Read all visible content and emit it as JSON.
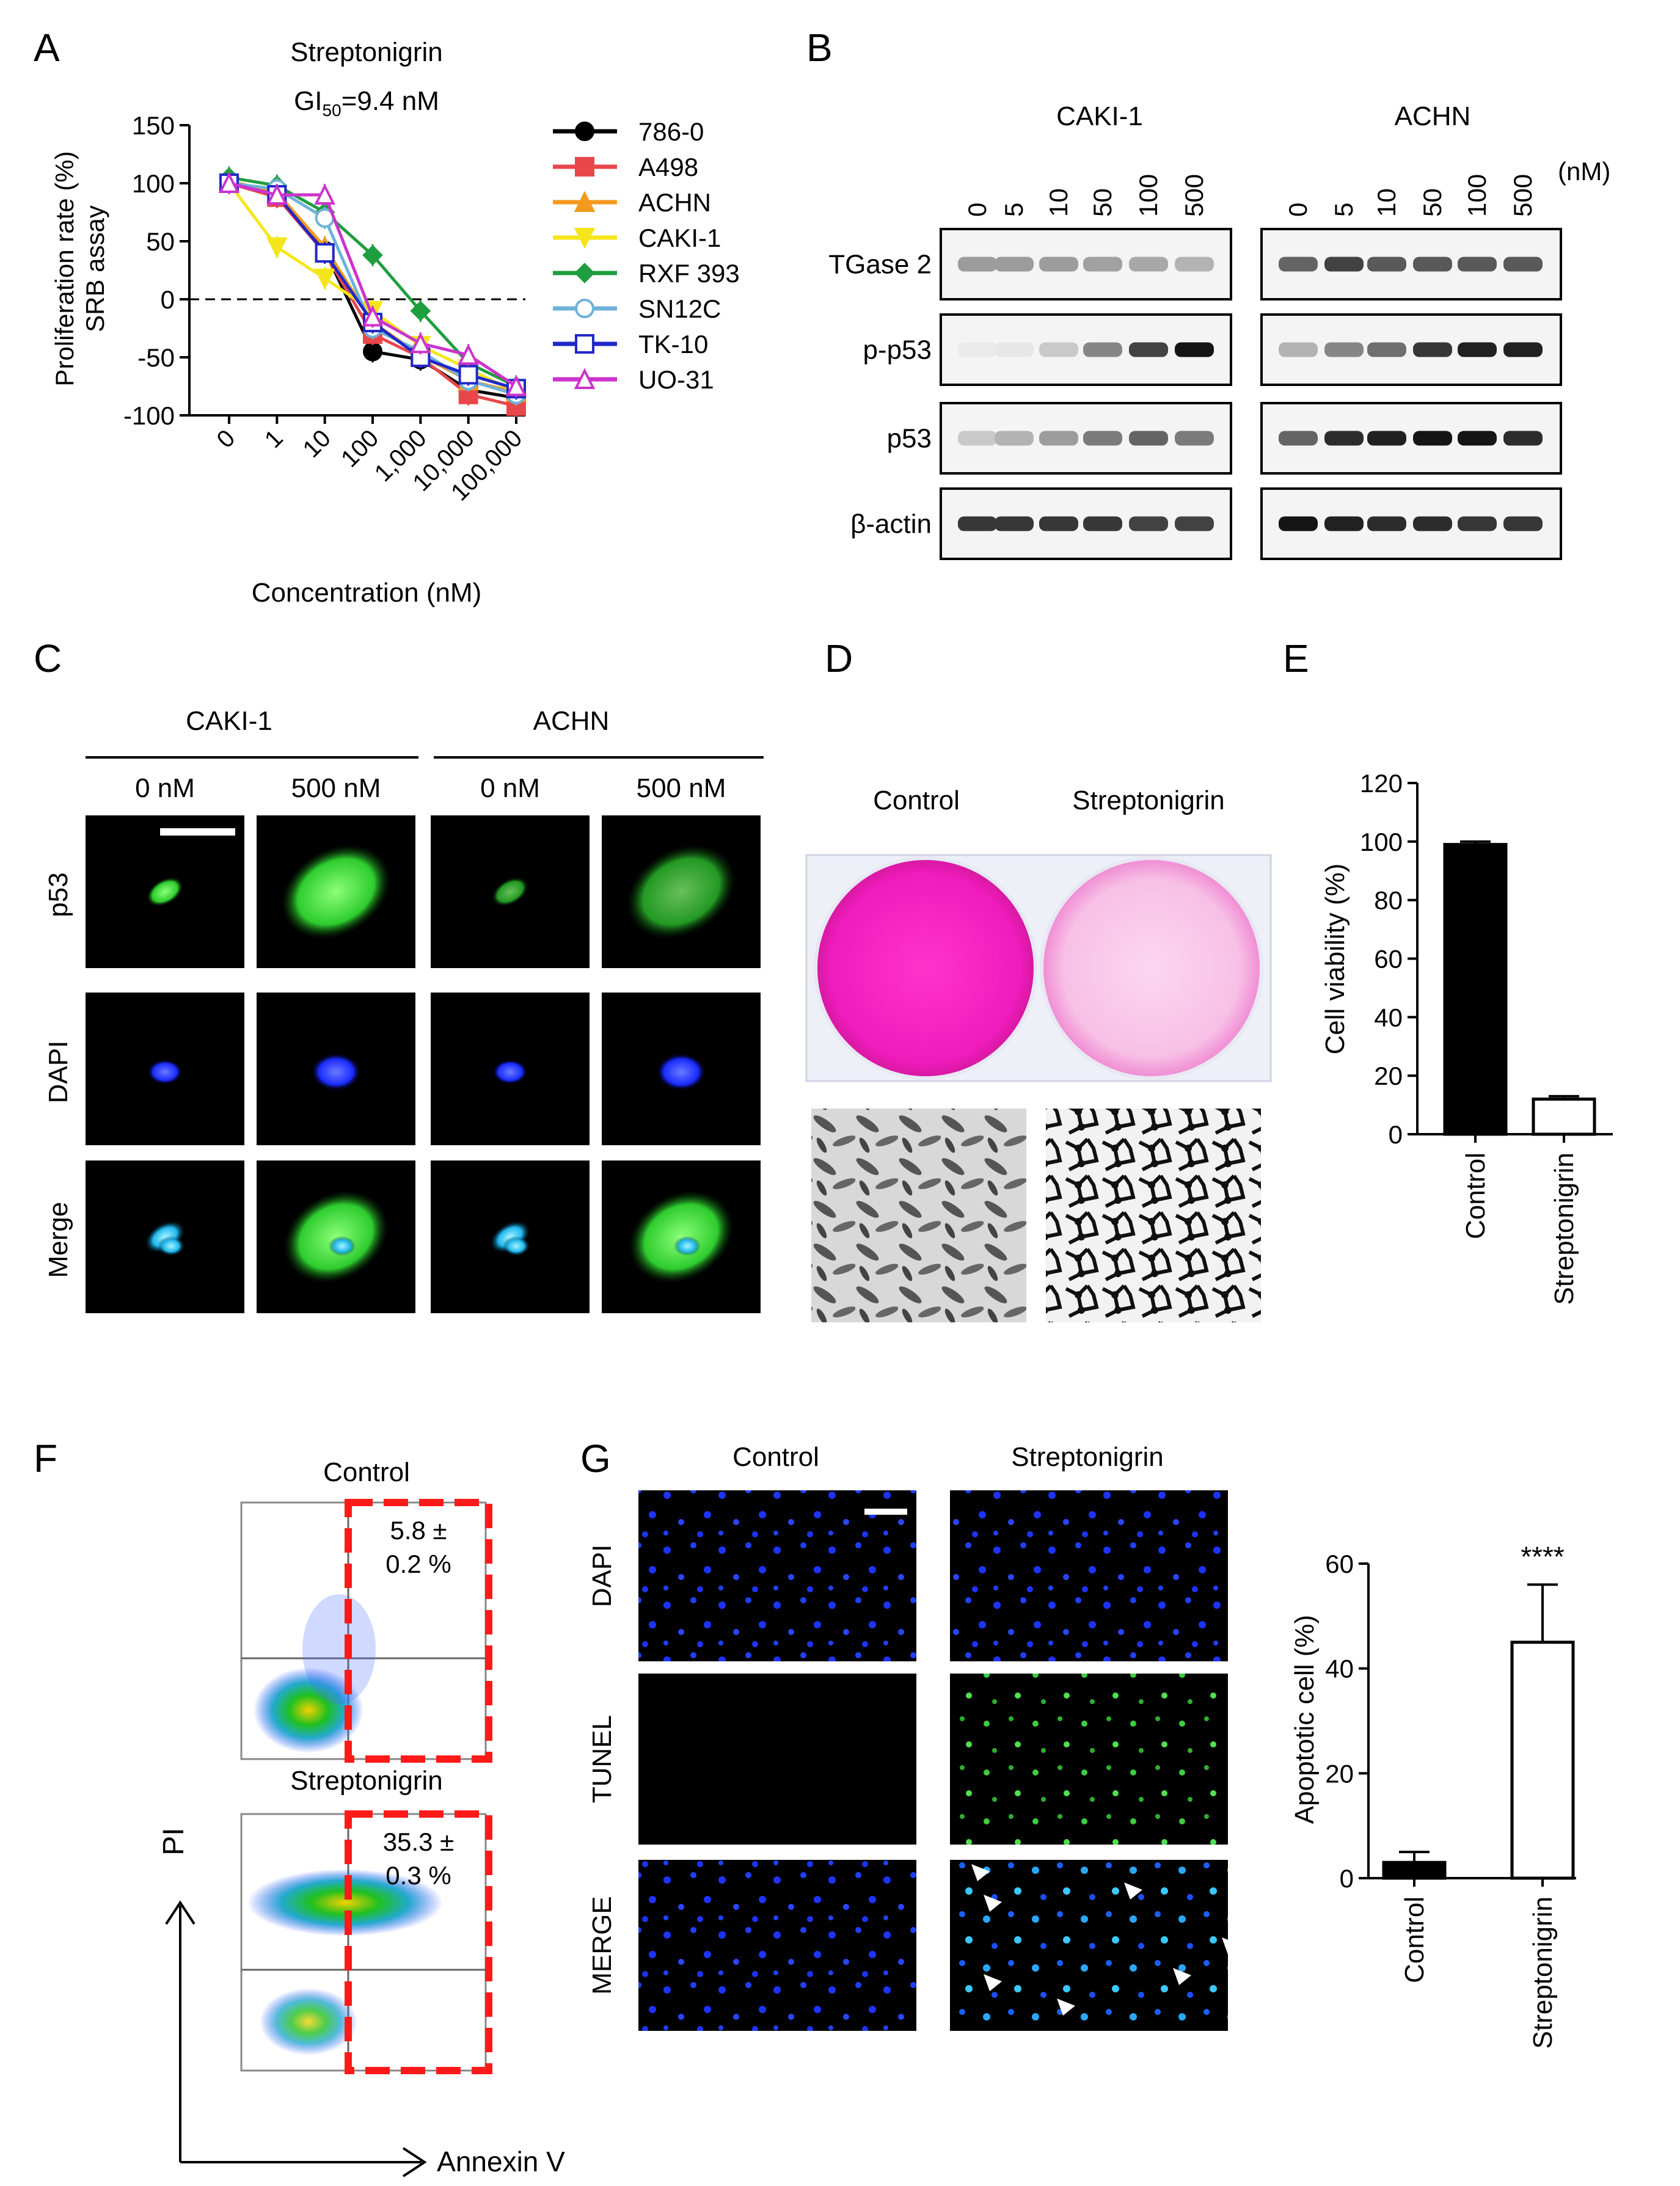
{
  "panels": {
    "A": {
      "label": "A",
      "title": "Streptonigrin",
      "gi50_prefix": "GI",
      "gi50_sub": "50",
      "gi50_value": "=9.4 nM",
      "chart_data": {
        "type": "line",
        "title": "Streptonigrin",
        "xlabel": "Concentration (nM)",
        "ylabel_line1": "Proliferation rate (%)",
        "ylabel_line2": "SRB assay",
        "x_ticks": [
          "0",
          "1",
          "10",
          "100",
          "1,000",
          "10,000",
          "100,000"
        ],
        "y_ticks": [
          150,
          100,
          50,
          0,
          -50,
          -100
        ],
        "ylim": [
          -100,
          150
        ],
        "reference_line": 0,
        "legend_position": "right",
        "series": [
          {
            "name": "786-0",
            "color": "#000000",
            "marker": "circle",
            "values": [
              100,
              90,
              42,
              -45,
              -52,
              -78,
              -85
            ]
          },
          {
            "name": "A498",
            "color": "#e8474a",
            "marker": "square",
            "values": [
              100,
              88,
              40,
              -30,
              -50,
              -82,
              -92
            ]
          },
          {
            "name": "ACHN",
            "color": "#f39a1e",
            "marker": "triangle",
            "values": [
              102,
              92,
              45,
              -20,
              -48,
              -70,
              -80
            ]
          },
          {
            "name": "CAKI-1",
            "color": "#f5e61c",
            "marker": "triangle-down",
            "values": [
              100,
              45,
              18,
              -10,
              -40,
              -60,
              -80
            ]
          },
          {
            "name": "RXF 393",
            "color": "#1f9e3f",
            "marker": "diamond",
            "values": [
              105,
              98,
              75,
              38,
              -10,
              -55,
              -75
            ]
          },
          {
            "name": "SN12C",
            "color": "#6fb2d8",
            "marker": "circle-open",
            "values": [
              100,
              95,
              70,
              -25,
              -45,
              -70,
              -82
            ]
          },
          {
            "name": "TK-10",
            "color": "#2128c8",
            "marker": "square-open",
            "values": [
              100,
              90,
              40,
              -20,
              -50,
              -65,
              -77
            ]
          },
          {
            "name": "UO-31",
            "color": "#cc33cc",
            "marker": "triangle-open",
            "values": [
              100,
              90,
              90,
              -15,
              -38,
              -48,
              -75
            ]
          }
        ]
      }
    },
    "B": {
      "label": "B",
      "groups": [
        "CAKI-1",
        "ACHN"
      ],
      "doses": [
        "0",
        "5",
        "10",
        "50",
        "100",
        "500"
      ],
      "unit": "(nM)",
      "rows": [
        {
          "name": "TGase 2",
          "caki": [
            0.35,
            0.35,
            0.35,
            0.33,
            0.3,
            0.25
          ],
          "achn": [
            0.6,
            0.75,
            0.65,
            0.65,
            0.65,
            0.65
          ]
        },
        {
          "name": "p-p53",
          "caki": [
            0.0,
            0.02,
            0.15,
            0.45,
            0.75,
            0.95
          ],
          "achn": [
            0.25,
            0.45,
            0.55,
            0.8,
            0.9,
            0.9
          ]
        },
        {
          "name": "p53",
          "caki": [
            0.15,
            0.25,
            0.35,
            0.5,
            0.6,
            0.5
          ],
          "achn": [
            0.6,
            0.85,
            0.9,
            0.95,
            0.95,
            0.85
          ]
        },
        {
          "name": "β-actin",
          "caki": [
            0.8,
            0.8,
            0.8,
            0.8,
            0.75,
            0.75
          ],
          "achn": [
            0.95,
            0.9,
            0.85,
            0.85,
            0.8,
            0.8
          ]
        }
      ]
    },
    "C": {
      "label": "C",
      "groups": [
        "CAKI-1",
        "ACHN"
      ],
      "conditions": [
        "0 nM",
        "500 nM",
        "0 nM",
        "500 nM"
      ],
      "rows": [
        "p53",
        "DAPI",
        "Merge"
      ]
    },
    "D": {
      "label": "D",
      "conditions": [
        "Control",
        "Streptonigrin"
      ]
    },
    "E": {
      "label": "E",
      "chart_data": {
        "type": "bar",
        "categories": [
          "Control",
          "Streptonigrin"
        ],
        "values": [
          99,
          12
        ],
        "errors": [
          1,
          1
        ],
        "ylabel": "Cell viability (%)",
        "y_ticks": [
          0,
          20,
          40,
          60,
          80,
          100,
          120
        ],
        "ylim": [
          0,
          120
        ]
      }
    },
    "F": {
      "label": "F",
      "plots": [
        {
          "title": "Control",
          "value_line1": "5.8 ±",
          "value_line2": "0.2 %"
        },
        {
          "title": "Streptonigrin",
          "value_line1": "35.3 ±",
          "value_line2": "0.3 %"
        }
      ],
      "y_axis_label": "PI",
      "x_axis_label": "Annexin V"
    },
    "G": {
      "label": "G",
      "conditions": [
        "Control",
        "Streptonigrin"
      ],
      "rows": [
        "DAPI",
        "TUNEL",
        "MERGE"
      ],
      "chart_data": {
        "type": "bar",
        "categories": [
          "Control",
          "Streptonigrin"
        ],
        "values": [
          3,
          45
        ],
        "errors": [
          2,
          11
        ],
        "ylabel": "Apoptotic cell (%)",
        "y_ticks": [
          0,
          20,
          40,
          60
        ],
        "ylim": [
          0,
          60
        ],
        "significance": "****"
      }
    }
  }
}
